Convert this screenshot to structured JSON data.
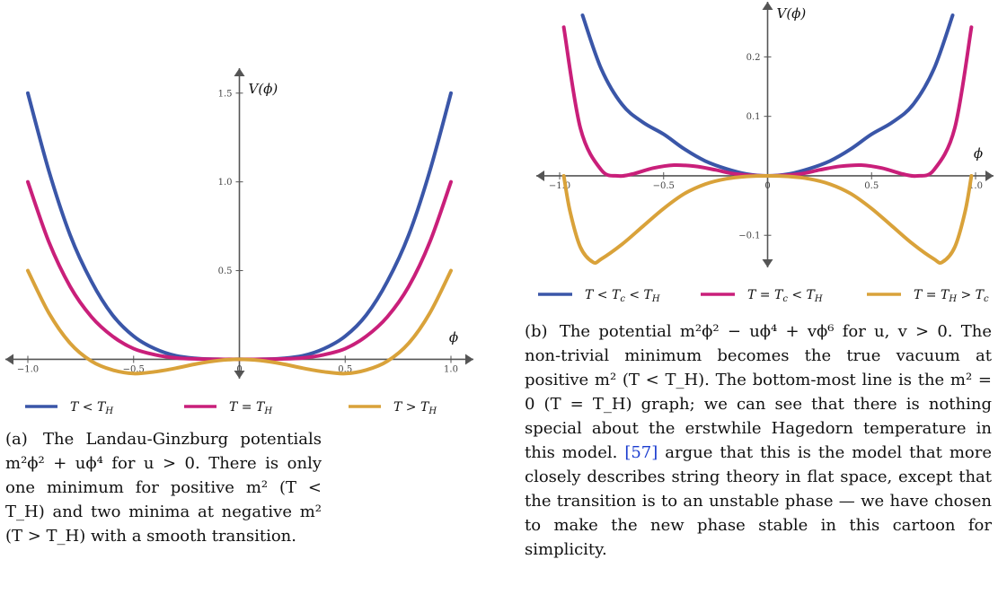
{
  "chart_data": [
    {
      "type": "line",
      "panel_label": "(a)",
      "title": "",
      "xlabel": "ϕ",
      "ylabel": "V(ϕ)",
      "xlim": [
        -1.0,
        1.0
      ],
      "ylim": [
        -0.2,
        1.6
      ],
      "x_ticks": [
        -1.0,
        -0.5,
        0,
        0.5,
        1.0
      ],
      "x_tick_labels": [
        "−1.0",
        "−0.5",
        "0",
        "0.5",
        "1.0"
      ],
      "y_ticks": [
        0.5,
        1.0,
        1.5
      ],
      "y_tick_labels": [
        "0.5",
        "1.0",
        "1.5"
      ],
      "grid": false,
      "legend_position": "bottom",
      "series": [
        {
          "name": "T < T_H",
          "legend": "T < T",
          "legend_sub": "H",
          "color": "#3a56a8",
          "x": [
            -1.0,
            -0.9,
            -0.8,
            -0.7,
            -0.6,
            -0.5,
            -0.4,
            -0.3,
            -0.2,
            -0.1,
            0.0,
            0.1,
            0.2,
            0.3,
            0.4,
            0.5,
            0.6,
            0.7,
            0.8,
            0.9,
            1.0
          ],
          "y": [
            1.5,
            1.06,
            0.7,
            0.44,
            0.25,
            0.13,
            0.06,
            0.02,
            0.005,
            0.0,
            0.0,
            0.0,
            0.005,
            0.02,
            0.06,
            0.13,
            0.25,
            0.44,
            0.7,
            1.06,
            1.5
          ]
        },
        {
          "name": "T = T_H",
          "legend": "T = T",
          "legend_sub": "H",
          "color": "#c91f7a",
          "x": [
            -1.0,
            -0.9,
            -0.8,
            -0.7,
            -0.6,
            -0.5,
            -0.4,
            -0.3,
            -0.2,
            -0.1,
            0.0,
            0.1,
            0.2,
            0.3,
            0.4,
            0.5,
            0.6,
            0.7,
            0.8,
            0.9,
            1.0
          ],
          "y": [
            1.0,
            0.66,
            0.41,
            0.24,
            0.13,
            0.06,
            0.026,
            0.008,
            0.002,
            0.0,
            0.0,
            0.0,
            0.002,
            0.008,
            0.026,
            0.06,
            0.13,
            0.24,
            0.41,
            0.66,
            1.0
          ]
        },
        {
          "name": "T > T_H",
          "legend": "T > T",
          "legend_sub": "H",
          "color": "#d9a23a",
          "x": [
            -1.0,
            -0.9,
            -0.8,
            -0.7,
            -0.6,
            -0.5,
            -0.4,
            -0.3,
            -0.2,
            -0.1,
            0.0,
            0.1,
            0.2,
            0.3,
            0.4,
            0.5,
            0.6,
            0.7,
            0.8,
            0.9,
            1.0
          ],
          "y": [
            0.5,
            0.26,
            0.09,
            -0.01,
            -0.06,
            -0.08,
            -0.07,
            -0.05,
            -0.025,
            -0.007,
            0.0,
            -0.007,
            -0.025,
            -0.05,
            -0.07,
            -0.08,
            -0.06,
            -0.01,
            0.09,
            0.26,
            0.5
          ]
        }
      ]
    },
    {
      "type": "line",
      "panel_label": "(b)",
      "title": "",
      "xlabel": "ϕ",
      "ylabel": "V(ϕ)",
      "xlim": [
        -1.0,
        1.0
      ],
      "ylim": [
        -0.16,
        0.27
      ],
      "x_ticks": [
        -1.0,
        -0.5,
        0,
        0.5,
        1.0
      ],
      "x_tick_labels": [
        "−1.0",
        "−0.5",
        "0",
        "0.5",
        "1.0"
      ],
      "y_ticks": [
        -0.1,
        0.1,
        0.2
      ],
      "y_tick_labels": [
        "−0.1",
        "0.1",
        "0.2"
      ],
      "grid": false,
      "legend_position": "bottom",
      "series": [
        {
          "name": "T < T_c < T_H",
          "legend": "T < T",
          "legend_sub": "c",
          "legend_tail": " < T",
          "legend_tail_sub": "H",
          "color": "#3a56a8",
          "x": [
            -0.89,
            -0.8,
            -0.7,
            -0.6,
            -0.5,
            -0.4,
            -0.3,
            -0.2,
            -0.1,
            0.0,
            0.1,
            0.2,
            0.3,
            0.4,
            0.5,
            0.6,
            0.7,
            0.8,
            0.89
          ],
          "y": [
            0.27,
            0.18,
            0.12,
            0.09,
            0.07,
            0.045,
            0.025,
            0.012,
            0.003,
            0.0,
            0.003,
            0.012,
            0.025,
            0.045,
            0.07,
            0.09,
            0.12,
            0.18,
            0.27
          ]
        },
        {
          "name": "T = T_c < T_H",
          "legend": "T = T",
          "legend_sub": "c",
          "legend_tail": " < T",
          "legend_tail_sub": "H",
          "color": "#c91f7a",
          "x": [
            -0.98,
            -0.9,
            -0.8,
            -0.72,
            -0.65,
            -0.55,
            -0.45,
            -0.35,
            -0.25,
            -0.15,
            0.0,
            0.15,
            0.25,
            0.35,
            0.45,
            0.55,
            0.65,
            0.72,
            0.8,
            0.9,
            0.98
          ],
          "y": [
            0.25,
            0.08,
            0.01,
            0.0,
            0.003,
            0.013,
            0.018,
            0.016,
            0.01,
            0.003,
            0.0,
            0.003,
            0.01,
            0.016,
            0.018,
            0.013,
            0.003,
            0.0,
            0.01,
            0.08,
            0.25
          ]
        },
        {
          "name": "T = T_H > T_c",
          "legend": "T = T",
          "legend_sub": "H",
          "legend_tail": " > T",
          "legend_tail_sub": "c",
          "color": "#d9a23a",
          "x": [
            -0.98,
            -0.95,
            -0.9,
            -0.84,
            -0.8,
            -0.7,
            -0.6,
            -0.5,
            -0.4,
            -0.3,
            -0.2,
            -0.1,
            0.0,
            0.1,
            0.2,
            0.3,
            0.4,
            0.5,
            0.6,
            0.7,
            0.8,
            0.84,
            0.9,
            0.95,
            0.98
          ],
          "y": [
            0.0,
            -0.06,
            -0.12,
            -0.145,
            -0.14,
            -0.115,
            -0.085,
            -0.055,
            -0.03,
            -0.014,
            -0.005,
            -0.001,
            0.0,
            -0.001,
            -0.005,
            -0.014,
            -0.03,
            -0.055,
            -0.085,
            -0.115,
            -0.14,
            -0.145,
            -0.12,
            -0.06,
            0.0
          ]
        }
      ]
    }
  ],
  "captions": {
    "a": {
      "prefix": "(a)",
      "text": "The Landau-Ginzburg potentials m²ϕ² + uϕ⁴ for u > 0. There is only one minimum for positive m² (T < T_H) and two minima at negative m² (T > T_H) with a smooth transition."
    },
    "b": {
      "prefix": "(b)",
      "text_before_cite": "The potential m²ϕ² − uϕ⁴ + vϕ⁶ for u, v > 0. The non-trivial minimum becomes the true vacuum at positive m² (T < T_H). The bottom-most line is the m² = 0 (T = T_H) graph; we can see that there is nothing special about the erstwhile Hagedorn temperature in this model.",
      "cite": "[57]",
      "text_after_cite": "argue that this is the model that more closely describes string theory in flat space, except that the transition is to an unstable phase — we have chosen to make the new phase stable in this cartoon for simplicity."
    }
  }
}
